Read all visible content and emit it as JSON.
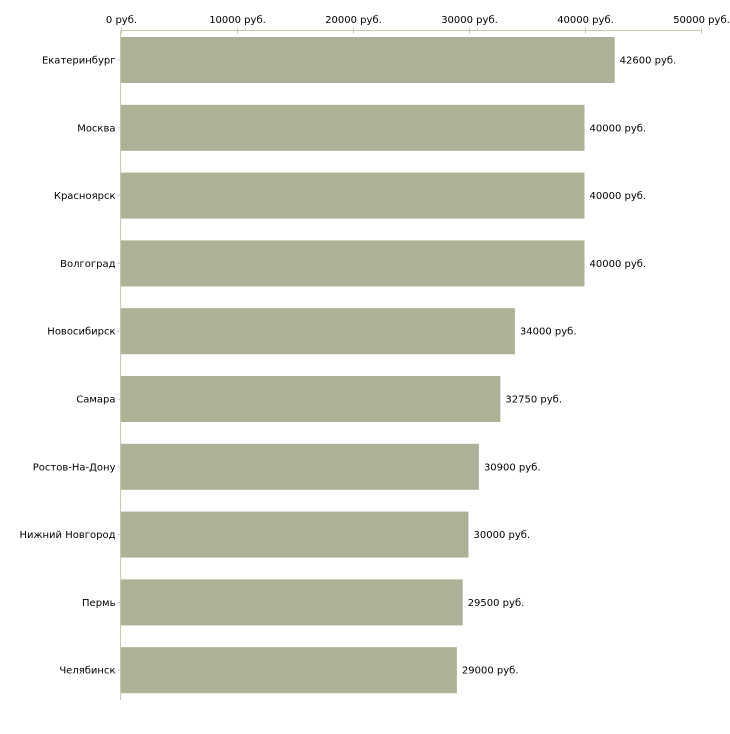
{
  "chart_data": {
    "type": "bar",
    "orientation": "horizontal",
    "title": "",
    "xlabel": "",
    "ylabel": "",
    "categories": [
      "Екатеринбург",
      "Москва",
      "Красноярск",
      "Волгоград",
      "Новосибирск",
      "Самара",
      "Ростов-На-Дону",
      "Нижний Новгород",
      "Пермь",
      "Челябинск"
    ],
    "values": [
      42600,
      40000,
      40000,
      40000,
      34000,
      32750,
      30900,
      30000,
      29500,
      29000
    ],
    "value_labels": [
      "42600 руб.",
      "40000 руб.",
      "40000 руб.",
      "40000 руб.",
      "34000 руб.",
      "32750 руб.",
      "30900 руб.",
      "30000 руб.",
      "29500 руб.",
      "29000 руб."
    ],
    "xlim": [
      0,
      50000
    ],
    "ticks": [
      0,
      10000,
      20000,
      30000,
      40000,
      50000
    ],
    "tick_labels": [
      "0 руб.",
      "10000 руб.",
      "20000 руб.",
      "30000 руб.",
      "40000 руб.",
      "50000 руб."
    ],
    "axis_position": "top",
    "grid": false,
    "bar_color": "#acb295",
    "axis_color": "#c8c8b4"
  }
}
